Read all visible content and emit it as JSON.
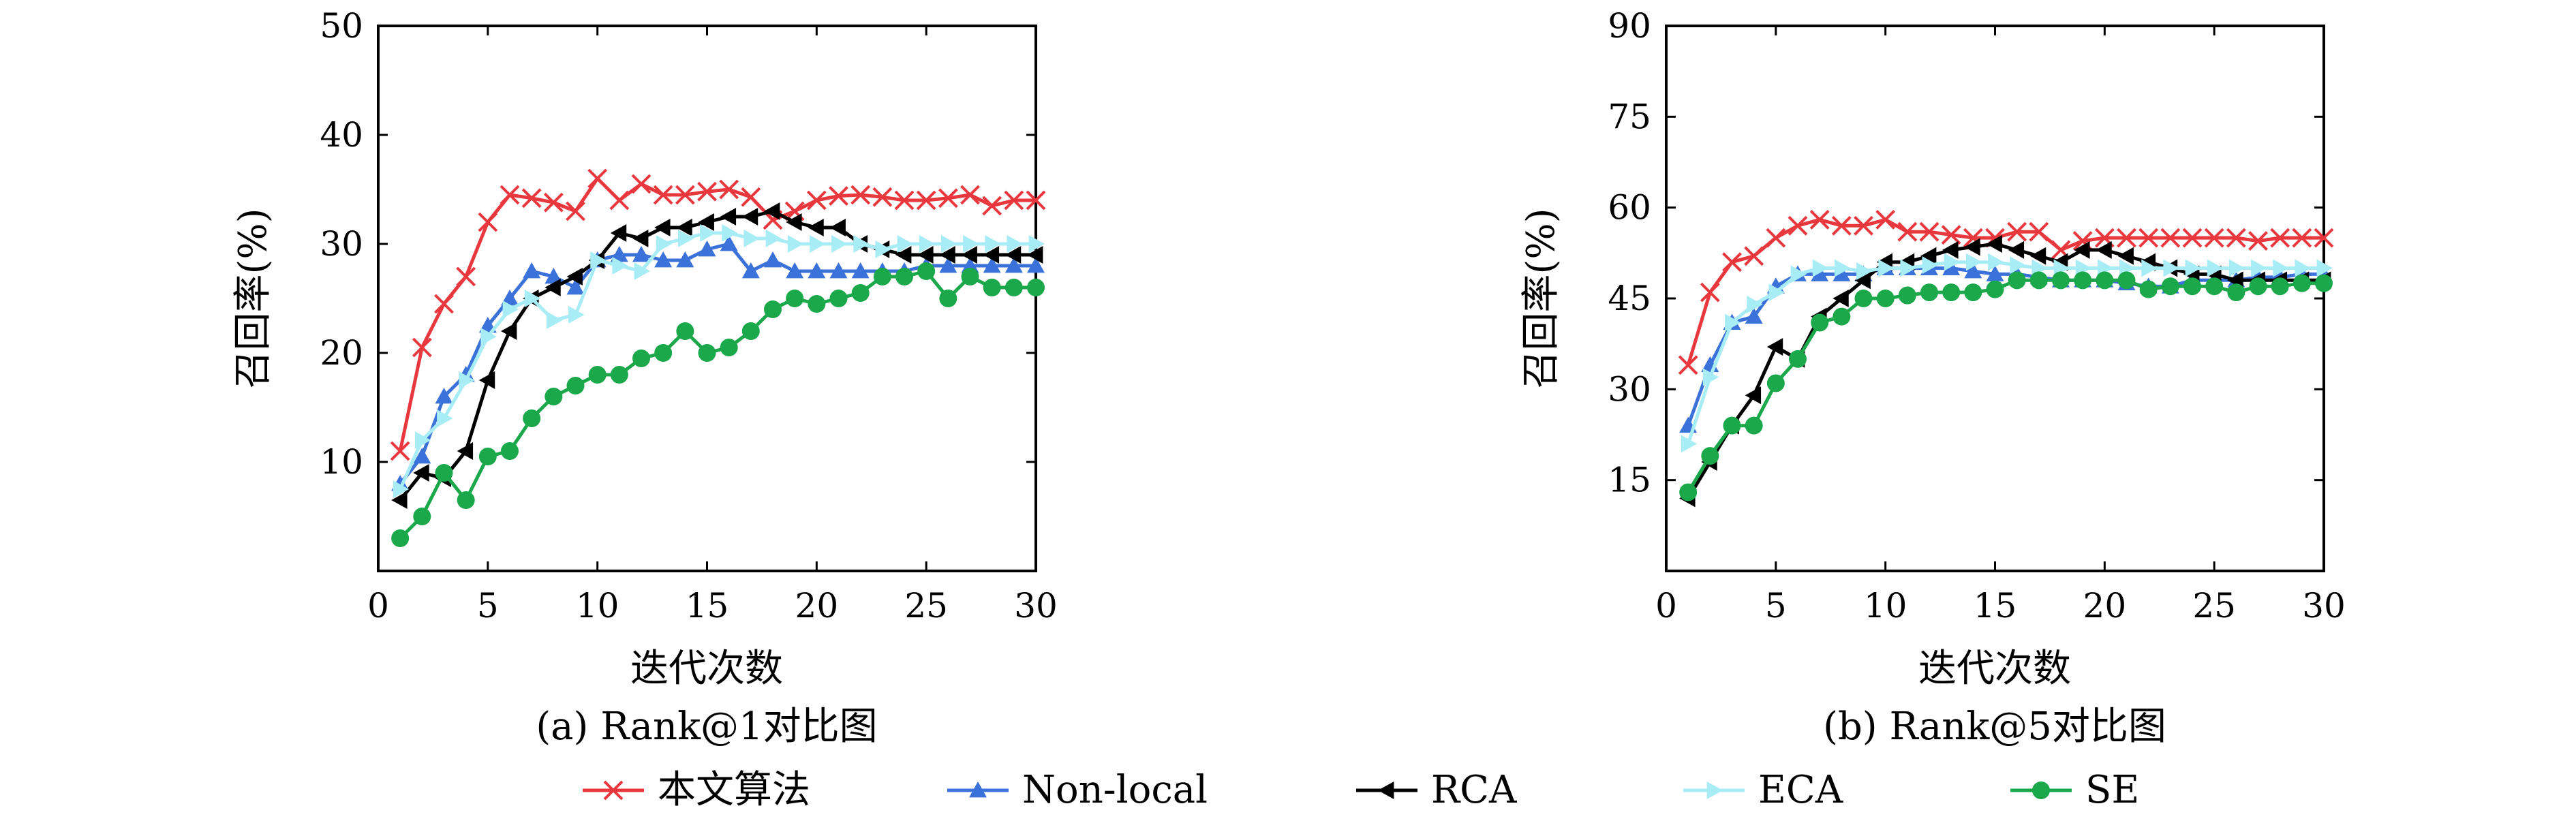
{
  "legend": [
    {
      "name": "本文算法",
      "color": "#e8383d",
      "marker": "x"
    },
    {
      "name": "Non-local",
      "color": "#3b72d9",
      "marker": "triangle-up"
    },
    {
      "name": "RCA",
      "color": "#000000",
      "marker": "triangle-left"
    },
    {
      "name": "ECA",
      "color": "#a8ecf5",
      "marker": "triangle-right"
    },
    {
      "name": "SE",
      "color": "#1aa84a",
      "marker": "circle"
    }
  ],
  "chart_data": [
    {
      "type": "line",
      "caption": "(a) Rank@1对比图",
      "xlabel": "迭代次数",
      "ylabel": "召回率(%)",
      "xlim": [
        0,
        30
      ],
      "ylim": [
        0,
        50
      ],
      "xticks": [
        0,
        5,
        10,
        15,
        20,
        25,
        30
      ],
      "yticks": [
        10,
        20,
        30,
        40,
        50
      ],
      "grid": false,
      "x": [
        1,
        2,
        3,
        4,
        5,
        6,
        7,
        8,
        9,
        10,
        11,
        12,
        13,
        14,
        15,
        16,
        17,
        18,
        19,
        20,
        21,
        22,
        23,
        24,
        25,
        26,
        27,
        28,
        29,
        30
      ],
      "series": [
        {
          "name": "本文算法",
          "values": [
            11,
            20.5,
            24.5,
            27,
            32,
            34.5,
            34.2,
            33.8,
            33,
            36,
            34,
            35.5,
            34.5,
            34.5,
            34.8,
            35,
            34.3,
            32.2,
            33,
            34,
            34.4,
            34.5,
            34.3,
            34,
            34,
            34.2,
            34.5,
            33.5,
            34,
            34
          ]
        },
        {
          "name": "Non-local",
          "values": [
            8,
            10.5,
            16,
            18,
            22.5,
            25,
            27.5,
            27,
            26,
            28.5,
            29,
            29,
            28.5,
            28.5,
            29.5,
            30,
            27.5,
            28.5,
            27.5,
            27.5,
            27.5,
            27.5,
            27.5,
            27.5,
            28,
            28,
            28,
            28,
            28,
            28
          ]
        },
        {
          "name": "RCA",
          "values": [
            6.5,
            9,
            8.5,
            11,
            17.5,
            22,
            25,
            26,
            27,
            28.5,
            31,
            30.5,
            31.5,
            31.5,
            32,
            32.5,
            32.5,
            33,
            32,
            31.5,
            31.5,
            30,
            29.5,
            29,
            29,
            29,
            29,
            29,
            29,
            29
          ]
        },
        {
          "name": "ECA",
          "values": [
            7.5,
            12,
            14,
            17.5,
            21.5,
            24,
            25,
            23,
            23.5,
            28.5,
            28,
            27.5,
            30,
            30.5,
            31,
            31,
            30.5,
            30.5,
            30,
            30,
            30,
            30,
            29.5,
            30,
            30,
            30,
            30,
            30,
            30,
            30
          ]
        },
        {
          "name": "SE",
          "values": [
            3,
            5,
            9,
            6.5,
            10.5,
            11,
            14,
            16,
            17,
            18,
            18,
            19.5,
            20,
            22,
            20,
            20.5,
            22,
            24,
            25,
            24.5,
            25,
            25.5,
            27,
            27,
            27.5,
            25,
            27,
            26,
            26,
            26
          ]
        }
      ]
    },
    {
      "type": "line",
      "caption": "(b) Rank@5对比图",
      "xlabel": "迭代次数",
      "ylabel": "召回率(%)",
      "xlim": [
        0,
        30
      ],
      "ylim": [
        0,
        90
      ],
      "xticks": [
        0,
        5,
        10,
        15,
        20,
        25,
        30
      ],
      "yticks": [
        15,
        30,
        45,
        60,
        75,
        90
      ],
      "grid": false,
      "x": [
        1,
        2,
        3,
        4,
        5,
        6,
        7,
        8,
        9,
        10,
        11,
        12,
        13,
        14,
        15,
        16,
        17,
        18,
        19,
        20,
        21,
        22,
        23,
        24,
        25,
        26,
        27,
        28,
        29,
        30
      ],
      "series": [
        {
          "name": "本文算法",
          "values": [
            34,
            46,
            51,
            52,
            55,
            57,
            58,
            57,
            57,
            58,
            56,
            56,
            55.5,
            55,
            55,
            56,
            56,
            53,
            54.5,
            55,
            55,
            55,
            55,
            55,
            55,
            55,
            54.5,
            55,
            55,
            55
          ]
        },
        {
          "name": "Non-local",
          "values": [
            24,
            34,
            41,
            42,
            47,
            49,
            49,
            49,
            49,
            50,
            50,
            50,
            50,
            49.5,
            49,
            49,
            48.5,
            48,
            48,
            48,
            47.5,
            47,
            47,
            48,
            48,
            48,
            48.5,
            48.5,
            49,
            49
          ]
        },
        {
          "name": "RCA",
          "values": [
            12,
            18,
            24,
            29,
            37,
            35,
            42,
            45,
            48,
            51,
            51,
            52,
            53,
            53.5,
            54,
            53,
            52,
            51,
            53,
            53,
            52,
            51,
            50,
            49,
            49,
            48,
            48,
            48,
            48,
            48
          ]
        },
        {
          "name": "ECA",
          "values": [
            21,
            32,
            41,
            44,
            46,
            49,
            50,
            50,
            49.5,
            50,
            50,
            50.5,
            51,
            51,
            51,
            50.5,
            50,
            50,
            50,
            50,
            50,
            50,
            50,
            50,
            50,
            50,
            50,
            50,
            50,
            50
          ]
        },
        {
          "name": "SE",
          "values": [
            13,
            19,
            24,
            24,
            31,
            35,
            41,
            42,
            45,
            45,
            45.5,
            46,
            46,
            46,
            46.5,
            48,
            48,
            48,
            48,
            48,
            48,
            46.5,
            47,
            47,
            47,
            46,
            47,
            47,
            47.5,
            47.5
          ]
        }
      ]
    }
  ]
}
